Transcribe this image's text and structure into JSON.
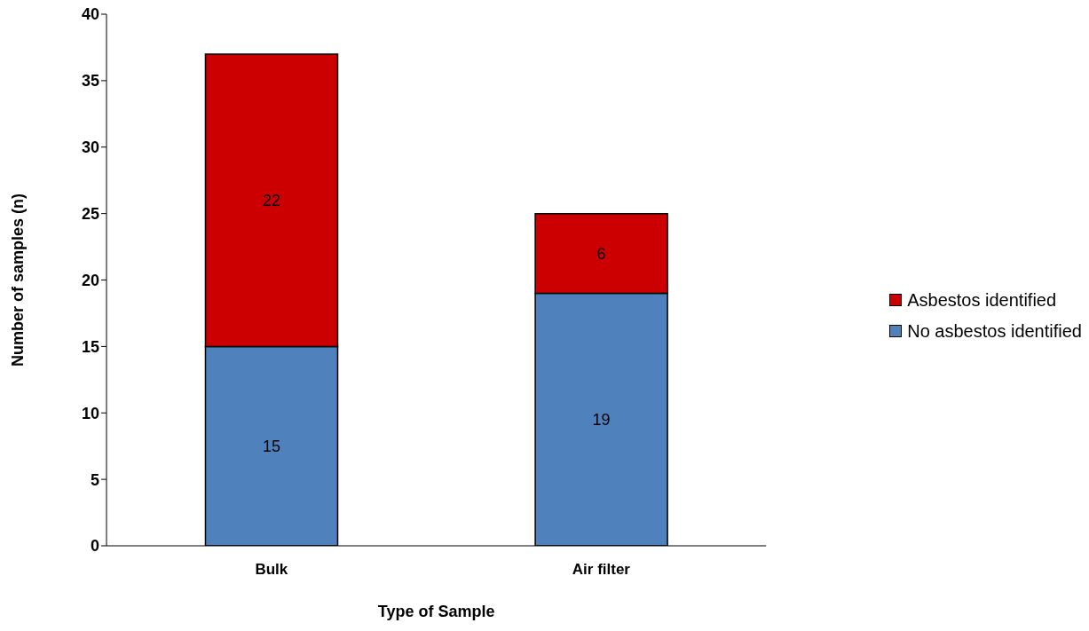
{
  "chart_data": {
    "type": "bar",
    "stacked": true,
    "xlabel": "Type of Sample",
    "ylabel": "Number of samples (n)",
    "categories": [
      "Bulk",
      "Air filter"
    ],
    "series": [
      {
        "name": "No asbestos identified",
        "color": "#4f81bd",
        "values": [
          15,
          19
        ]
      },
      {
        "name": "Asbestos identified",
        "color": "#cc0000",
        "values": [
          22,
          6
        ]
      }
    ],
    "ylim": [
      0,
      40
    ],
    "yticks": [
      0,
      5,
      10,
      15,
      20,
      25,
      30,
      35,
      40
    ],
    "data_labels": true,
    "grid": false,
    "legend": "right"
  }
}
